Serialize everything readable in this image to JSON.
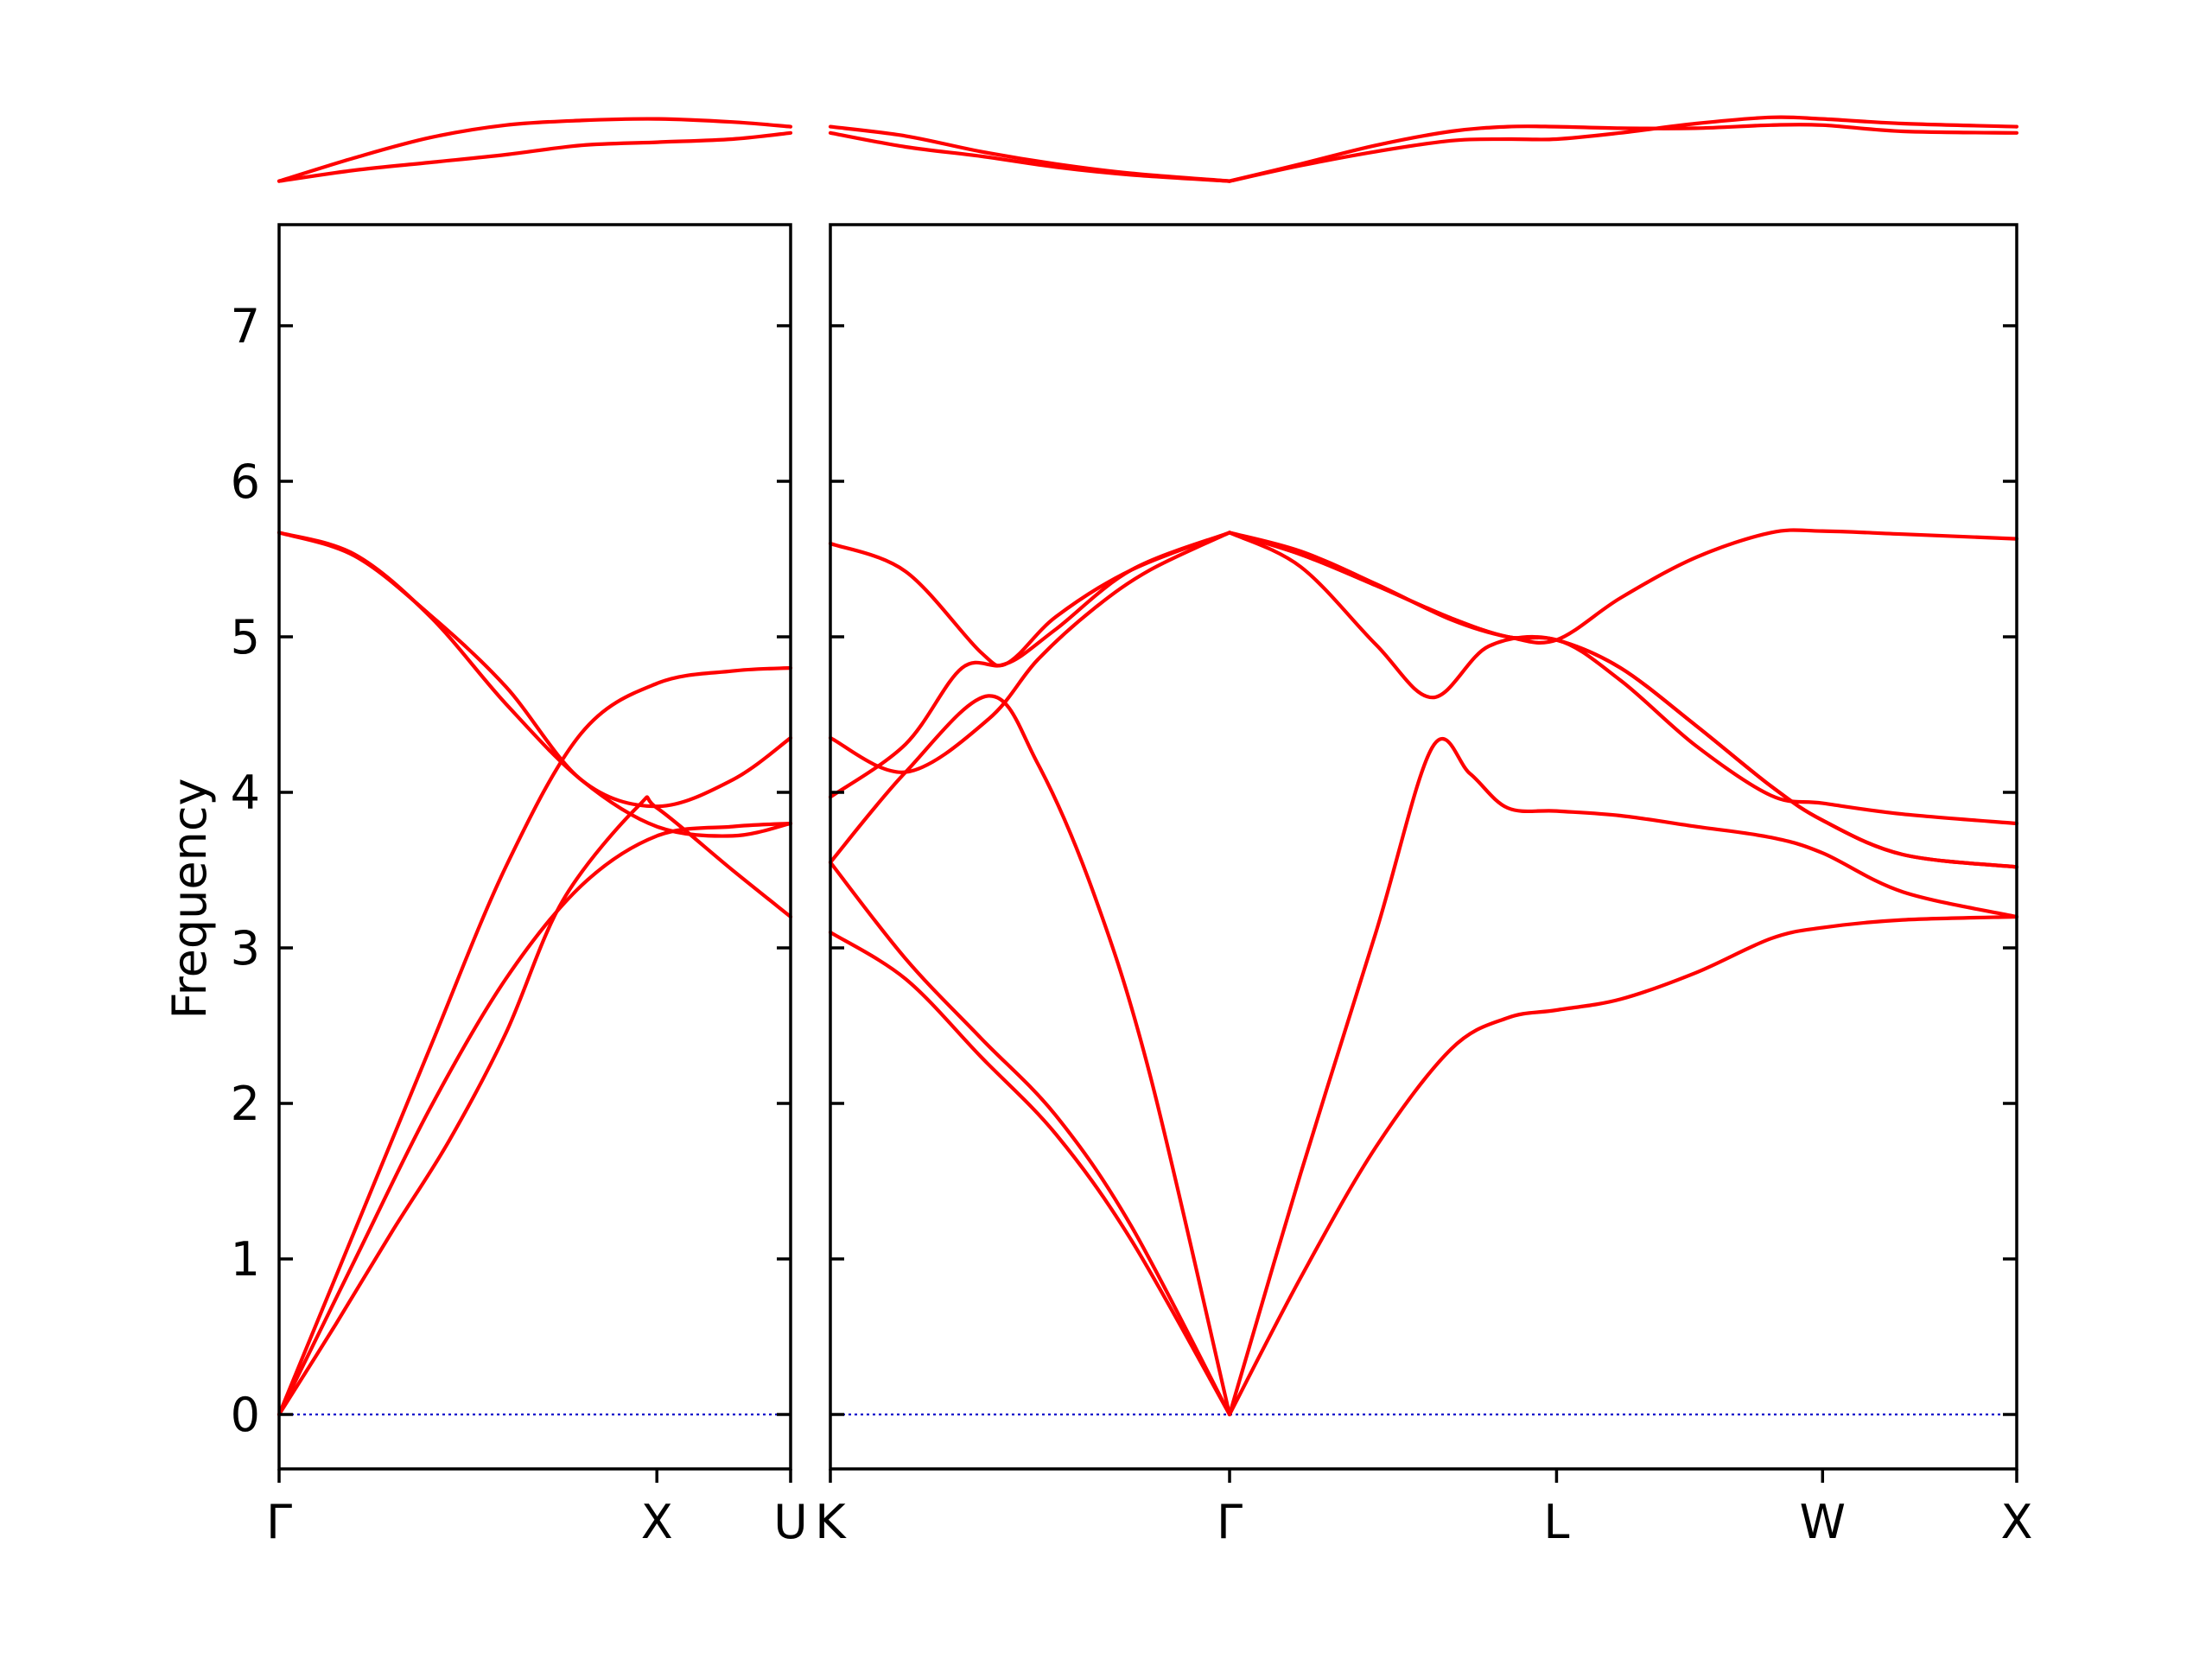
{
  "chart_data": {
    "type": "line",
    "ylabel": "Frequency",
    "ylim": [
      -0.35,
      7.65
    ],
    "yticks": [
      0,
      1,
      2,
      3,
      4,
      5,
      6,
      7
    ],
    "grid": false,
    "line_color": "#ff0000",
    "zero_line_color": "#0000cc",
    "panels": [
      {
        "x_range": [
          0,
          1.354
        ],
        "xticks": [
          {
            "x": 0,
            "label": "Γ"
          },
          {
            "x": 1.0,
            "label": "X"
          },
          {
            "x": 1.354,
            "label": "U"
          }
        ],
        "bands": [
          [
            [
              0,
              0
            ],
            [
              0.2,
              0.99
            ],
            [
              0.4,
              1.97
            ],
            [
              0.6,
              2.8
            ],
            [
              0.8,
              3.4
            ],
            [
              1.0,
              3.72
            ],
            [
              1.2,
              3.78
            ],
            [
              1.354,
              3.8
            ]
          ],
          [
            [
              0,
              0
            ],
            [
              0.2,
              1.18
            ],
            [
              0.4,
              2.36
            ],
            [
              0.6,
              3.52
            ],
            [
              0.8,
              4.38
            ],
            [
              1.0,
              4.7
            ],
            [
              1.2,
              4.78
            ],
            [
              1.354,
              4.8
            ]
          ],
          [
            [
              0,
              0
            ],
            [
              0.15,
              0.58
            ],
            [
              0.3,
              1.18
            ],
            [
              0.45,
              1.76
            ],
            [
              0.6,
              2.45
            ],
            [
              0.75,
              3.3
            ],
            [
              0.95,
              3.91
            ],
            [
              1.0,
              3.9
            ],
            [
              1.2,
              3.5
            ],
            [
              1.354,
              3.2
            ]
          ],
          [
            [
              0,
              5.67
            ],
            [
              0.2,
              5.53
            ],
            [
              0.4,
              5.13
            ],
            [
              0.6,
              4.57
            ],
            [
              0.8,
              4.08
            ],
            [
              1.0,
              3.78
            ],
            [
              1.2,
              3.72
            ],
            [
              1.354,
              3.8
            ]
          ],
          [
            [
              0,
              5.67
            ],
            [
              0.2,
              5.52
            ],
            [
              0.4,
              5.14
            ],
            [
              0.6,
              4.68
            ],
            [
              0.8,
              4.08
            ],
            [
              1.0,
              3.91
            ],
            [
              1.2,
              4.08
            ],
            [
              1.354,
              4.35
            ]
          ],
          [
            [
              0,
              7.93
            ],
            [
              0.2,
              8.0
            ],
            [
              0.4,
              8.05
            ],
            [
              0.6,
              8.1
            ],
            [
              0.8,
              8.16
            ],
            [
              1.0,
              8.18
            ],
            [
              1.2,
              8.2
            ],
            [
              1.354,
              8.24
            ]
          ],
          [
            [
              0,
              7.93
            ],
            [
              0.2,
              8.08
            ],
            [
              0.4,
              8.21
            ],
            [
              0.6,
              8.29
            ],
            [
              0.8,
              8.32
            ],
            [
              1.0,
              8.33
            ],
            [
              1.2,
              8.31
            ],
            [
              1.354,
              8.28
            ]
          ]
        ]
      },
      {
        "x_range": [
          0,
          3.153
        ],
        "xticks": [
          {
            "x": 0,
            "label": "K"
          },
          {
            "x": 1.061,
            "label": "Γ"
          },
          {
            "x": 1.93,
            "label": "L"
          },
          {
            "x": 2.637,
            "label": "W"
          },
          {
            "x": 3.153,
            "label": "X"
          }
        ],
        "bands": [
          [
            [
              0,
              3.1
            ],
            [
              0.2,
              2.8
            ],
            [
              0.4,
              2.3
            ],
            [
              0.6,
              1.8
            ],
            [
              0.8,
              1.12
            ],
            [
              1.061,
              0
            ]
          ],
          [
            [
              0,
              3.55
            ],
            [
              0.2,
              2.93
            ],
            [
              0.4,
              2.42
            ],
            [
              0.6,
              1.92
            ],
            [
              0.8,
              1.21
            ],
            [
              1.061,
              0
            ]
          ],
          [
            [
              0,
              3.55
            ],
            [
              0.2,
              4.13
            ],
            [
              0.42,
              4.62
            ],
            [
              0.55,
              4.19
            ],
            [
              0.7,
              3.35
            ],
            [
              0.85,
              2.18
            ],
            [
              1.061,
              0
            ]
          ],
          [
            [
              0,
              4.35
            ],
            [
              0.2,
              4.13
            ],
            [
              0.42,
              4.47
            ],
            [
              0.55,
              4.85
            ],
            [
              0.7,
              5.18
            ],
            [
              0.85,
              5.43
            ],
            [
              1.061,
              5.67
            ]
          ],
          [
            [
              0,
              3.97
            ],
            [
              0.2,
              4.31
            ],
            [
              0.35,
              4.8
            ],
            [
              0.47,
              4.83
            ],
            [
              0.6,
              5.13
            ],
            [
              0.8,
              5.43
            ],
            [
              1.061,
              5.67
            ]
          ],
          [
            [
              0,
              5.6
            ],
            [
              0.2,
              5.42
            ],
            [
              0.4,
              4.9
            ],
            [
              0.47,
              4.83
            ],
            [
              0.6,
              5.05
            ],
            [
              0.8,
              5.43
            ],
            [
              1.061,
              5.67
            ]
          ],
          [
            [
              0,
              8.24
            ],
            [
              0.2,
              8.15
            ],
            [
              0.4,
              8.09
            ],
            [
              0.6,
              8.02
            ],
            [
              0.8,
              7.97
            ],
            [
              1.061,
              7.93
            ]
          ],
          [
            [
              0,
              8.28
            ],
            [
              0.2,
              8.22
            ],
            [
              0.4,
              8.12
            ],
            [
              0.6,
              8.04
            ],
            [
              0.8,
              7.98
            ],
            [
              1.061,
              7.93
            ]
          ],
          [
            [
              1.061,
              0
            ],
            [
              1.25,
              0.88
            ],
            [
              1.45,
              1.72
            ],
            [
              1.65,
              2.35
            ],
            [
              1.8,
              2.55
            ],
            [
              1.93,
              2.6
            ],
            [
              2.1,
              2.67
            ],
            [
              2.3,
              2.84
            ],
            [
              2.5,
              3.06
            ],
            [
              2.637,
              3.13
            ],
            [
              2.85,
              3.18
            ],
            [
              3.153,
              3.2
            ]
          ],
          [
            [
              1.061,
              0
            ],
            [
              1.25,
              1.55
            ],
            [
              1.45,
              3.1
            ],
            [
              1.6,
              4.29
            ],
            [
              1.7,
              4.12
            ],
            [
              1.8,
              3.9
            ],
            [
              1.93,
              3.88
            ],
            [
              2.1,
              3.85
            ],
            [
              2.3,
              3.78
            ],
            [
              2.5,
              3.71
            ],
            [
              2.637,
              3.61
            ],
            [
              2.85,
              3.36
            ],
            [
              3.153,
              3.2
            ]
          ],
          [
            [
              1.061,
              5.67
            ],
            [
              1.25,
              5.45
            ],
            [
              1.45,
              4.95
            ],
            [
              1.6,
              4.61
            ],
            [
              1.75,
              4.94
            ],
            [
              1.93,
              4.98
            ],
            [
              2.1,
              4.72
            ],
            [
              2.3,
              4.3
            ],
            [
              2.5,
              3.98
            ],
            [
              2.637,
              3.93
            ],
            [
              2.85,
              3.86
            ],
            [
              3.153,
              3.8
            ]
          ],
          [
            [
              1.061,
              5.67
            ],
            [
              1.25,
              5.53
            ],
            [
              1.45,
              5.33
            ],
            [
              1.65,
              5.12
            ],
            [
              1.8,
              5.0
            ],
            [
              1.93,
              4.98
            ],
            [
              2.1,
              4.8
            ],
            [
              2.3,
              4.43
            ],
            [
              2.5,
              4.04
            ],
            [
              2.637,
              3.82
            ],
            [
              2.85,
              3.6
            ],
            [
              3.153,
              3.52
            ]
          ],
          [
            [
              1.061,
              5.67
            ],
            [
              1.25,
              5.53
            ],
            [
              1.45,
              5.33
            ],
            [
              1.65,
              5.12
            ],
            [
              1.8,
              5.0
            ],
            [
              1.93,
              4.98
            ],
            [
              2.1,
              4.8
            ],
            [
              2.3,
              4.43
            ],
            [
              2.5,
              4.04
            ],
            [
              2.637,
              3.82
            ],
            [
              2.85,
              3.6
            ],
            [
              3.153,
              3.52
            ]
          ],
          [
            [
              1.061,
              5.67
            ],
            [
              1.25,
              5.55
            ],
            [
              1.45,
              5.34
            ],
            [
              1.65,
              5.11
            ],
            [
              1.8,
              5.0
            ],
            [
              1.93,
              4.98
            ],
            [
              2.1,
              5.25
            ],
            [
              2.3,
              5.51
            ],
            [
              2.5,
              5.67
            ],
            [
              2.637,
              5.68
            ],
            [
              2.85,
              5.66
            ],
            [
              3.153,
              5.63
            ]
          ],
          [
            [
              1.061,
              7.93
            ],
            [
              1.25,
              8.03
            ],
            [
              1.45,
              8.12
            ],
            [
              1.65,
              8.19
            ],
            [
              1.8,
              8.2
            ],
            [
              1.93,
              8.2
            ],
            [
              2.1,
              8.24
            ],
            [
              2.3,
              8.3
            ],
            [
              2.5,
              8.34
            ],
            [
              2.637,
              8.33
            ],
            [
              2.85,
              8.3
            ],
            [
              3.153,
              8.28
            ]
          ],
          [
            [
              1.061,
              7.93
            ],
            [
              1.25,
              8.04
            ],
            [
              1.45,
              8.16
            ],
            [
              1.65,
              8.25
            ],
            [
              1.8,
              8.28
            ],
            [
              1.93,
              8.28
            ],
            [
              2.1,
              8.27
            ],
            [
              2.3,
              8.27
            ],
            [
              2.5,
              8.29
            ],
            [
              2.637,
              8.29
            ],
            [
              2.85,
              8.25
            ],
            [
              3.153,
              8.24
            ]
          ]
        ]
      }
    ]
  }
}
